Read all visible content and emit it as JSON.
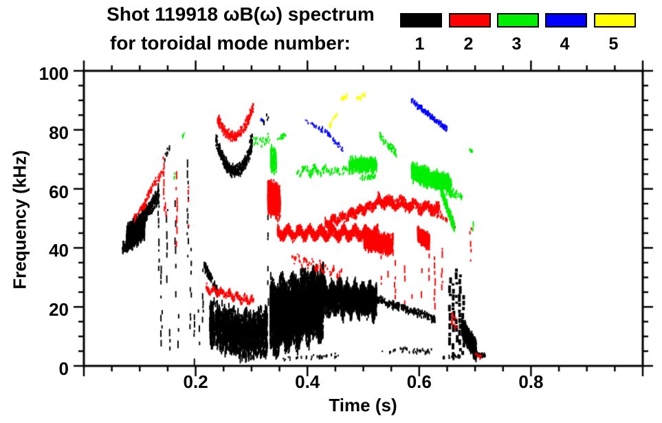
{
  "title": {
    "line1": "Shot 119918 ωB(ω) spectrum",
    "line2": "for toroidal mode number:"
  },
  "legend": {
    "items": [
      {
        "label": "1",
        "color": "#000000"
      },
      {
        "label": "2",
        "color": "#ff0000"
      },
      {
        "label": "3",
        "color": "#00ee00"
      },
      {
        "label": "4",
        "color": "#0000ff"
      },
      {
        "label": "5",
        "color": "#ffff00"
      }
    ]
  },
  "axes": {
    "x": {
      "label": "Time (s)",
      "min": 0,
      "max": 1.0,
      "major_ticks": [
        0.2,
        0.4,
        0.6,
        0.8
      ],
      "major_labels": [
        "0.2",
        "0.4",
        "0.6",
        "0.8"
      ],
      "minor_step": 0.05
    },
    "y": {
      "label": "Frequency (kHz)",
      "min": 0,
      "max": 100,
      "major_ticks": [
        0,
        20,
        40,
        60,
        80,
        100
      ],
      "major_labels": [
        "0",
        "20",
        "40",
        "60",
        "80",
        "100"
      ],
      "minor_step": 5
    }
  },
  "chart_data": {
    "type": "scatter",
    "title": "Shot 119918 ωB(ω) spectrum for toroidal mode number",
    "xlabel": "Time (s)",
    "ylabel": "Frequency (kHz)",
    "xlim": [
      0,
      1.0
    ],
    "ylim": [
      0,
      100
    ],
    "grid": false,
    "legend_position": "top-right",
    "modes": [
      {
        "n": 1,
        "color": "#000000"
      },
      {
        "n": 2,
        "color": "#ff0000"
      },
      {
        "n": 3,
        "color": "#00ee00"
      },
      {
        "n": 4,
        "color": "#0000ff"
      },
      {
        "n": 5,
        "color": "#ffff00"
      }
    ],
    "clusters": [
      {
        "mode": 1,
        "kind": "scatter",
        "t": [
          0.068,
          0.086
        ],
        "f": [
          40,
          43
        ],
        "thick": 2.5,
        "n": 130
      },
      {
        "mode": 1,
        "kind": "scatter",
        "t": [
          0.075,
          0.108
        ],
        "f": [
          43,
          48
        ],
        "thick": 5,
        "n": 650,
        "smear": true
      },
      {
        "mode": 1,
        "kind": "scatter",
        "t": [
          0.1,
          0.133
        ],
        "f": [
          49,
          58
        ],
        "thick": 3,
        "n": 280
      },
      {
        "mode": 1,
        "kind": "scatter",
        "t": [
          0.143,
          0.152
        ],
        "f": [
          70,
          74
        ],
        "thick": 1.5,
        "n": 12
      },
      {
        "mode": 1,
        "kind": "vlines",
        "w": 2,
        "d": 0.55,
        "lines": [
          [
            0.134,
            30,
            62
          ],
          [
            0.139,
            8,
            34
          ],
          [
            0.149,
            28,
            56
          ],
          [
            0.154,
            4,
            18
          ],
          [
            0.164,
            24,
            58
          ],
          [
            0.169,
            3,
            24
          ],
          [
            0.186,
            36,
            70
          ],
          [
            0.191,
            12,
            40
          ],
          [
            0.197,
            2,
            28
          ],
          [
            0.206,
            2,
            22
          ],
          [
            0.213,
            14,
            33
          ],
          [
            0.33,
            20,
            64
          ]
        ]
      },
      {
        "mode": 1,
        "kind": "scatter",
        "t": [
          0.214,
          0.238
        ],
        "f": [
          34,
          25
        ],
        "thick": 2,
        "n": 130
      },
      {
        "mode": 1,
        "kind": "scatter",
        "t": [
          0.224,
          0.327
        ],
        "f": [
          15,
          12
        ],
        "fdip": 11,
        "thick": 9,
        "n": 1500,
        "smear": true
      },
      {
        "mode": 1,
        "kind": "scatter",
        "t": [
          0.235,
          0.3
        ],
        "f": [
          77,
          75
        ],
        "fdip": 66,
        "thick": 2.5,
        "n": 420
      },
      {
        "mode": 1,
        "kind": "scatter",
        "t": [
          0.295,
          0.303
        ],
        "f": [
          76,
          80
        ],
        "thick": 1.5,
        "n": 10
      },
      {
        "mode": 1,
        "kind": "scatter",
        "t": [
          0.315,
          0.33
        ],
        "f": [
          82,
          85
        ],
        "thick": 1.5,
        "n": 10
      },
      {
        "mode": 1,
        "kind": "scatter",
        "t": [
          0.332,
          0.428
        ],
        "f": [
          16,
          22
        ],
        "thick": 13,
        "n": 3800,
        "smear": true,
        "wave": [
          5,
          2
        ]
      },
      {
        "mode": 1,
        "kind": "scatter",
        "t": [
          0.428,
          0.523
        ],
        "f": [
          23,
          22
        ],
        "thick": 6,
        "n": 1700,
        "smear": true,
        "wave": [
          7,
          1.5
        ]
      },
      {
        "mode": 1,
        "kind": "scatter",
        "t": [
          0.355,
          0.46
        ],
        "f": [
          2.5,
          3.5
        ],
        "thick": 1,
        "n": 30
      },
      {
        "mode": 1,
        "kind": "scatter",
        "t": [
          0.5,
          0.627
        ],
        "f": [
          24,
          16
        ],
        "thick": 1.6,
        "n": 300
      },
      {
        "mode": 1,
        "kind": "scatter",
        "t": [
          0.53,
          0.625
        ],
        "f": [
          5,
          5
        ],
        "thick": 1.2,
        "n": 40
      },
      {
        "mode": 1,
        "kind": "vlines",
        "w": 4,
        "d": 0.85,
        "lines": [
          [
            0.655,
            8,
            30
          ],
          [
            0.661,
            4,
            28
          ],
          [
            0.667,
            10,
            33
          ],
          [
            0.673,
            5,
            31
          ],
          [
            0.679,
            4,
            24
          ]
        ]
      },
      {
        "mode": 1,
        "kind": "scatter",
        "t": [
          0.675,
          0.701
        ],
        "f": [
          13,
          5
        ],
        "thick": 3.5,
        "n": 480,
        "smear": true
      },
      {
        "mode": 1,
        "kind": "scatter",
        "t": [
          0.7,
          0.717
        ],
        "f": [
          4,
          3.5
        ],
        "thick": 1,
        "n": 35
      },
      {
        "mode": 1,
        "kind": "scatter",
        "t": [
          0.64,
          0.672
        ],
        "f": [
          3,
          3
        ],
        "thick": 1,
        "n": 25
      },
      {
        "mode": 2,
        "kind": "scatter",
        "t": [
          0.088,
          0.11
        ],
        "f": [
          50,
          55
        ],
        "thick": 1.5,
        "n": 50
      },
      {
        "mode": 2,
        "kind": "scatter",
        "t": [
          0.108,
          0.128
        ],
        "f": [
          56,
          63
        ],
        "thick": 1.5,
        "n": 35
      },
      {
        "mode": 2,
        "kind": "scatter",
        "t": [
          0.115,
          0.142
        ],
        "f": [
          59,
          66
        ],
        "thick": 2,
        "n": 25
      },
      {
        "mode": 2,
        "kind": "vlines",
        "w": 2,
        "d": 0.6,
        "lines": [
          [
            0.143,
            54,
            71
          ],
          [
            0.147,
            50,
            62
          ],
          [
            0.166,
            41,
            66
          ],
          [
            0.188,
            45,
            61
          ]
        ]
      },
      {
        "mode": 2,
        "kind": "scatter",
        "t": [
          0.218,
          0.302
        ],
        "f": [
          26,
          22
        ],
        "thick": 1.4,
        "n": 210,
        "wave": [
          6,
          0.8
        ]
      },
      {
        "mode": 2,
        "kind": "scatter",
        "t": [
          0.238,
          0.302
        ],
        "f": [
          84,
          88
        ],
        "fdip": 78,
        "thick": 2,
        "n": 230
      },
      {
        "mode": 2,
        "kind": "scatter",
        "t": [
          0.328,
          0.35
        ],
        "f": [
          58,
          55
        ],
        "thick": 6.5,
        "n": 420,
        "smear": true
      },
      {
        "mode": 2,
        "kind": "scatter",
        "t": [
          0.345,
          0.525
        ],
        "f": [
          45,
          45
        ],
        "thick": 2.2,
        "n": 1500,
        "wave": [
          9,
          1.2
        ]
      },
      {
        "mode": 2,
        "kind": "scatter",
        "t": [
          0.43,
          0.525
        ],
        "f": [
          48,
          55
        ],
        "thick": 1.8,
        "n": 450,
        "wave": [
          6,
          0.8
        ]
      },
      {
        "mode": 2,
        "kind": "scatter",
        "t": [
          0.525,
          0.635
        ],
        "f": [
          56,
          53
        ],
        "thick": 2.2,
        "n": 600,
        "wave": [
          5,
          1
        ]
      },
      {
        "mode": 2,
        "kind": "scatter",
        "t": [
          0.37,
          0.46
        ],
        "f": [
          37,
          31
        ],
        "thick": 1.3,
        "n": 80,
        "wave": [
          7,
          1
        ]
      },
      {
        "mode": 2,
        "kind": "scatter",
        "t": [
          0.5,
          0.552
        ],
        "f": [
          43,
          41
        ],
        "thick": 3.5,
        "n": 550,
        "smear": true
      },
      {
        "mode": 2,
        "kind": "vlines",
        "w": 2,
        "d": 0.55,
        "lines": [
          [
            0.532,
            28,
            40
          ],
          [
            0.545,
            30,
            42
          ],
          [
            0.557,
            24,
            38
          ],
          [
            0.575,
            21,
            35
          ],
          [
            0.586,
            24,
            32
          ],
          [
            0.605,
            25,
            35
          ],
          [
            0.617,
            28,
            41
          ],
          [
            0.628,
            21,
            44
          ],
          [
            0.641,
            24,
            40
          ],
          [
            0.652,
            26,
            34
          ],
          [
            0.692,
            36,
            47
          ]
        ]
      },
      {
        "mode": 2,
        "kind": "scatter",
        "t": [
          0.596,
          0.617
        ],
        "f": [
          45,
          42
        ],
        "thick": 2.5,
        "n": 230,
        "smear": true
      },
      {
        "mode": 2,
        "kind": "scatter",
        "t": [
          0.61,
          0.65
        ],
        "f": [
          55,
          49
        ],
        "thick": 1.5,
        "n": 60
      },
      {
        "mode": 2,
        "kind": "scatter",
        "t": [
          0.648,
          0.663
        ],
        "f": [
          53,
          48
        ],
        "thick": 1.5,
        "n": 22
      },
      {
        "mode": 2,
        "kind": "scatter",
        "t": [
          0.655,
          0.668
        ],
        "f": [
          16,
          14
        ],
        "thick": 3,
        "n": 14
      },
      {
        "mode": 2,
        "kind": "scatter",
        "t": [
          0.7,
          0.71
        ],
        "f": [
          4,
          3
        ],
        "thick": 1,
        "n": 8
      },
      {
        "mode": 3,
        "kind": "scatter",
        "t": [
          0.303,
          0.332
        ],
        "f": [
          76,
          77
        ],
        "thick": 2.5,
        "n": 25
      },
      {
        "mode": 3,
        "kind": "scatter",
        "t": [
          0.333,
          0.343
        ],
        "f": [
          70,
          70
        ],
        "thick": 4.5,
        "n": 90,
        "smear": true
      },
      {
        "mode": 3,
        "kind": "scatter",
        "t": [
          0.345,
          0.362
        ],
        "f": [
          77,
          78
        ],
        "thick": 1.5,
        "n": 14
      },
      {
        "mode": 3,
        "kind": "scatter",
        "t": [
          0.38,
          0.472
        ],
        "f": [
          66,
          66
        ],
        "thick": 1.6,
        "n": 110,
        "wave": [
          5,
          1
        ]
      },
      {
        "mode": 3,
        "kind": "scatter",
        "t": [
          0.473,
          0.523
        ],
        "f": [
          68,
          68
        ],
        "thick": 2.6,
        "n": 220,
        "smear": true
      },
      {
        "mode": 3,
        "kind": "scatter",
        "t": [
          0.49,
          0.52
        ],
        "f": [
          64,
          64
        ],
        "thick": 1,
        "n": 30
      },
      {
        "mode": 3,
        "kind": "scatter",
        "t": [
          0.528,
          0.558
        ],
        "f": [
          78,
          72
        ],
        "thick": 1.5,
        "n": 55
      },
      {
        "mode": 3,
        "kind": "scatter",
        "t": [
          0.585,
          0.657
        ],
        "f": [
          66,
          61
        ],
        "thick": 3.2,
        "n": 600,
        "smear": true
      },
      {
        "mode": 3,
        "kind": "scatter",
        "t": [
          0.637,
          0.662
        ],
        "f": [
          60,
          47
        ],
        "thick": 2,
        "n": 80,
        "smear": true
      },
      {
        "mode": 3,
        "kind": "scatter",
        "t": [
          0.655,
          0.676
        ],
        "f": [
          59,
          57
        ],
        "thick": 1.5,
        "n": 30
      },
      {
        "mode": 3,
        "kind": "vlines",
        "w": 2,
        "d": 0.6,
        "lines": [
          [
            0.696,
            41,
            49
          ]
        ]
      },
      {
        "mode": 3,
        "kind": "scatter",
        "t": [
          0.688,
          0.694
        ],
        "f": [
          73,
          73
        ],
        "thick": 1,
        "n": 8
      },
      {
        "mode": 3,
        "kind": "scatter",
        "t": [
          0.175,
          0.18
        ],
        "f": [
          78,
          78
        ],
        "thick": 1,
        "n": 4
      },
      {
        "mode": 3,
        "kind": "scatter",
        "t": [
          0.159,
          0.163
        ],
        "f": [
          64,
          65
        ],
        "thick": 1,
        "n": 3
      },
      {
        "mode": 4,
        "kind": "scatter",
        "t": [
          0.315,
          0.321
        ],
        "f": [
          83,
          84
        ],
        "thick": 1,
        "n": 6
      },
      {
        "mode": 4,
        "kind": "scatter",
        "t": [
          0.395,
          0.426
        ],
        "f": [
          83,
          80
        ],
        "thick": 1,
        "n": 18
      },
      {
        "mode": 4,
        "kind": "scatter",
        "t": [
          0.428,
          0.463
        ],
        "f": [
          80,
          73
        ],
        "thick": 1,
        "n": 32
      },
      {
        "mode": 4,
        "kind": "scatter",
        "t": [
          0.585,
          0.649
        ],
        "f": [
          90,
          80
        ],
        "thick": 1.2,
        "n": 130
      },
      {
        "mode": 5,
        "kind": "scatter",
        "t": [
          0.438,
          0.453
        ],
        "f": [
          81,
          86
        ],
        "thick": 1,
        "n": 18
      },
      {
        "mode": 5,
        "kind": "scatter",
        "t": [
          0.456,
          0.47
        ],
        "f": [
          90,
          91.5
        ],
        "thick": 1,
        "n": 16
      },
      {
        "mode": 5,
        "kind": "scatter",
        "t": [
          0.487,
          0.502
        ],
        "f": [
          90.5,
          92
        ],
        "thick": 1,
        "n": 14
      }
    ]
  }
}
